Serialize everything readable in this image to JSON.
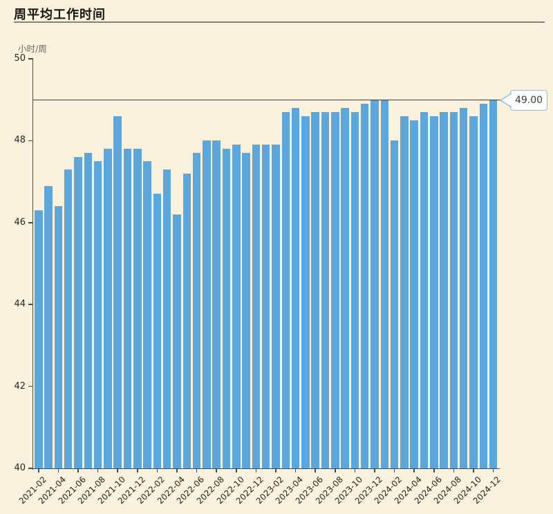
{
  "title": "周平均工作时间",
  "chart_data": {
    "type": "bar",
    "title": "周平均工作时间",
    "xlabel": "",
    "ylabel": "小时/周",
    "ylim": [
      40,
      50
    ],
    "yticks": [
      40,
      42,
      44,
      46,
      48,
      50
    ],
    "grid": false,
    "legend": "none",
    "bar_color": "#5BA6DB",
    "background_color": "#FAF2DF",
    "x_tick_interval": 2,
    "reference_line": {
      "value": 49,
      "label": "49.00"
    },
    "categories": [
      "2021-02",
      "2021-03",
      "2021-04",
      "2021-05",
      "2021-06",
      "2021-07",
      "2021-08",
      "2021-09",
      "2021-10",
      "2021-11",
      "2021-12",
      "2022-01",
      "2022-02",
      "2022-03",
      "2022-04",
      "2022-05",
      "2022-06",
      "2022-07",
      "2022-08",
      "2022-09",
      "2022-10",
      "2022-11",
      "2022-12",
      "2023-01",
      "2023-02",
      "2023-03",
      "2023-04",
      "2023-05",
      "2023-06",
      "2023-07",
      "2023-08",
      "2023-09",
      "2023-10",
      "2023-11",
      "2023-12",
      "2024-01",
      "2024-02",
      "2024-03",
      "2024-04",
      "2024-05",
      "2024-06",
      "2024-07",
      "2024-08",
      "2024-09",
      "2024-10",
      "2024-11",
      "2024-12"
    ],
    "values": [
      46.3,
      46.9,
      46.4,
      47.3,
      47.6,
      47.7,
      47.5,
      47.8,
      48.6,
      47.8,
      47.8,
      47.5,
      46.7,
      47.3,
      46.2,
      47.2,
      47.7,
      48.0,
      48.0,
      47.8,
      47.9,
      47.7,
      47.9,
      47.9,
      47.9,
      48.7,
      48.8,
      48.6,
      48.7,
      48.7,
      48.7,
      48.8,
      48.7,
      48.9,
      49.0,
      49.0,
      48.0,
      48.6,
      48.5,
      48.7,
      48.6,
      48.7,
      48.7,
      48.8,
      48.6,
      48.9,
      49.0
    ]
  }
}
